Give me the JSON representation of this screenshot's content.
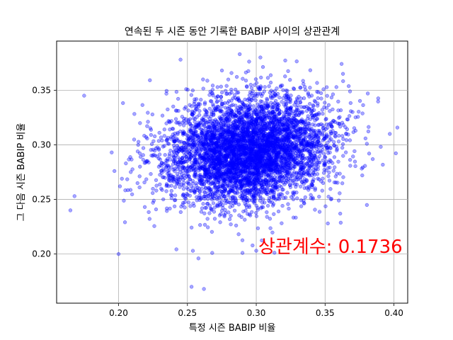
{
  "chart_data": {
    "type": "scatter",
    "title": "연속된 두 시즌 동안 기록한 BABIP 사이의 상관관계",
    "xlabel": "특정 시즌 BABIP 비율",
    "ylabel": "그 다음 시즌 BABIP 비율",
    "xlim": [
      0.155,
      0.41
    ],
    "ylim": [
      0.155,
      0.395
    ],
    "xticks": [
      "0.20",
      "0.25",
      "0.30",
      "0.35",
      "0.40"
    ],
    "yticks": [
      "0.20",
      "0.25",
      "0.30",
      "0.35"
    ],
    "xtick_values": [
      0.2,
      0.25,
      0.3,
      0.35,
      0.4
    ],
    "ytick_values": [
      0.2,
      0.25,
      0.3,
      0.35
    ],
    "grid": true,
    "annotation": "상관계수: 0.1736",
    "annotation_color": "#ff0000",
    "point_color": "#0000ff",
    "point_alpha": 0.35,
    "distribution": {
      "n_points": 5000,
      "mean_x": 0.295,
      "sd_x": 0.03,
      "mean_y": 0.295,
      "sd_y": 0.025,
      "correlation": 0.1736
    },
    "points": [
      [
        0.165,
        0.24
      ],
      [
        0.168,
        0.253
      ],
      [
        0.175,
        0.345
      ],
      [
        0.195,
        0.293
      ],
      [
        0.197,
        0.276
      ],
      [
        0.2,
        0.2
      ],
      [
        0.201,
        0.262
      ],
      [
        0.253,
        0.17
      ],
      [
        0.262,
        0.168
      ],
      [
        0.258,
        0.196
      ],
      [
        0.245,
        0.378
      ],
      [
        0.288,
        0.383
      ],
      [
        0.303,
        0.38
      ],
      [
        0.363,
        0.365
      ],
      [
        0.381,
        0.347
      ],
      [
        0.397,
        0.31
      ],
      [
        0.382,
        0.292
      ],
      [
        0.361,
        0.237
      ],
      [
        0.377,
        0.272
      ],
      [
        0.352,
        0.228
      ],
      [
        0.3,
        0.203
      ],
      [
        0.29,
        0.201
      ],
      [
        0.268,
        0.201
      ],
      [
        0.225,
        0.247
      ],
      [
        0.218,
        0.297
      ]
    ]
  }
}
